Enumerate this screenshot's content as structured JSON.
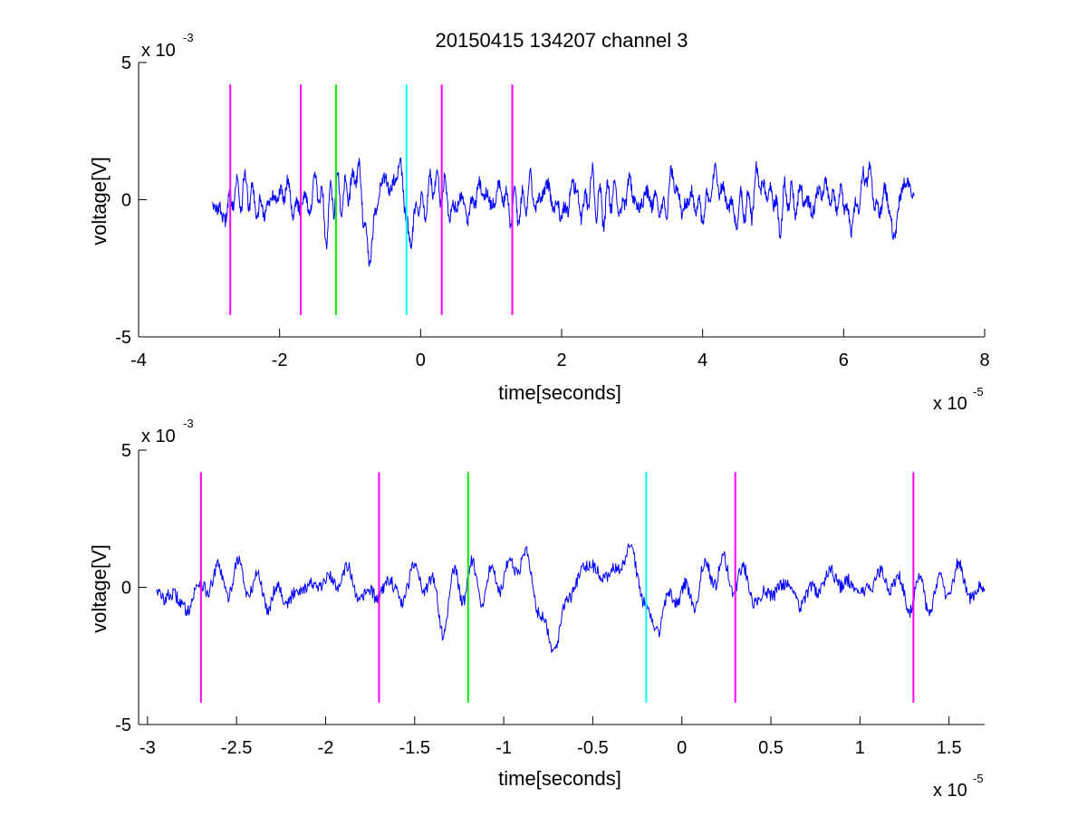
{
  "chart_data": [
    {
      "type": "line",
      "title": "20150415 134207 channel 3",
      "xlabel": "time[seconds]",
      "ylabel": "voltage[V]",
      "xlim": [
        -4,
        8
      ],
      "ylim": [
        -5,
        5
      ],
      "x_ticks": [
        -4,
        -2,
        0,
        2,
        4,
        6,
        8
      ],
      "x_tick_labels": [
        "-4",
        "-2",
        "0",
        "2",
        "4",
        "6",
        "8"
      ],
      "y_ticks": [
        -5,
        0,
        5
      ],
      "y_tick_labels": [
        "-5",
        "0",
        "5"
      ],
      "x_multiplier_base": "x 10",
      "x_multiplier_exp": "-5",
      "y_multiplier_base": "x 10",
      "y_multiplier_exp": "-3",
      "grid": false,
      "signal": {
        "color": "#0000ff",
        "x_start": -2.95,
        "x_end": 7.0,
        "points": 1600,
        "seed": 11
      },
      "markers": [
        {
          "x": -2.7,
          "color": "#ff00ff"
        },
        {
          "x": -1.7,
          "color": "#ff00ff"
        },
        {
          "x": -1.2,
          "color": "#00ee00"
        },
        {
          "x": -0.2,
          "color": "#00ffff"
        },
        {
          "x": 0.3,
          "color": "#ff00ff"
        },
        {
          "x": 1.3,
          "color": "#ff00ff"
        }
      ],
      "marker_range": [
        -4.2,
        4.2
      ]
    },
    {
      "type": "line",
      "title": "",
      "xlabel": "time[seconds]",
      "ylabel": "voltage[V]",
      "xlim": [
        -3.05,
        1.7
      ],
      "ylim": [
        -5,
        5
      ],
      "x_ticks": [
        -3,
        -2.5,
        -2,
        -1.5,
        -1,
        -0.5,
        0,
        0.5,
        1,
        1.5
      ],
      "x_tick_labels": [
        "-3",
        "-2.5",
        "-2",
        "-1.5",
        "-1",
        "-0.5",
        "0",
        "0.5",
        "1",
        "1.5"
      ],
      "y_ticks": [
        -5,
        0,
        5
      ],
      "y_tick_labels": [
        "-5",
        "0",
        "5"
      ],
      "x_multiplier_base": "x 10",
      "x_multiplier_exp": "-5",
      "y_multiplier_base": "x 10",
      "y_multiplier_exp": "-3",
      "grid": false,
      "signal": {
        "color": "#0000ff",
        "x_start": -2.95,
        "x_end": 1.7,
        "points": 1200,
        "seed": 11
      },
      "markers": [
        {
          "x": -2.7,
          "color": "#ff00ff"
        },
        {
          "x": -1.7,
          "color": "#ff00ff"
        },
        {
          "x": -1.2,
          "color": "#00ee00"
        },
        {
          "x": -0.2,
          "color": "#00ffff"
        },
        {
          "x": 0.3,
          "color": "#ff00ff"
        },
        {
          "x": 1.3,
          "color": "#ff00ff"
        }
      ],
      "marker_range": [
        -4.2,
        4.2
      ]
    }
  ]
}
